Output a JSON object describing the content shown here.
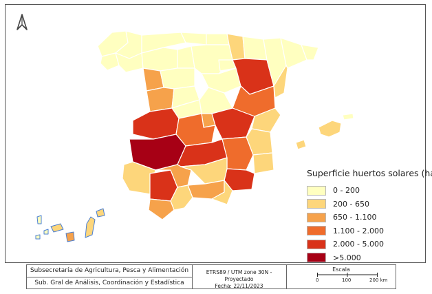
{
  "map": {
    "legend": {
      "title": "Superficie huertos solares (ha)",
      "classes": [
        {
          "label": "0 - 200",
          "color": "#ffffc0"
        },
        {
          "label": "200 - 650",
          "color": "#fdd67b"
        },
        {
          "label": "650 - 1.100",
          "color": "#f6a24b"
        },
        {
          "label": "1.100 - 2.000",
          "color": "#ef6c2c"
        },
        {
          "label": "2.000 - 5.000",
          "color": "#d93219"
        },
        {
          "label": ">5.000",
          "color": "#a70015"
        }
      ]
    },
    "north_arrow_icon": "north-arrow-icon"
  },
  "footer": {
    "org_line1": "Subsecretaría de Agricultura, Pesca y Alimentación",
    "org_line2": "Sub. Gral de Análisis, Coordinación y Estadística",
    "projection": "ETRS89 / UTM zone 30N - Proyectado",
    "date": "Fecha:  22/11/2023",
    "scale_title": "Escala",
    "scale_ticks": [
      "0",
      "100",
      "200 km"
    ]
  }
}
